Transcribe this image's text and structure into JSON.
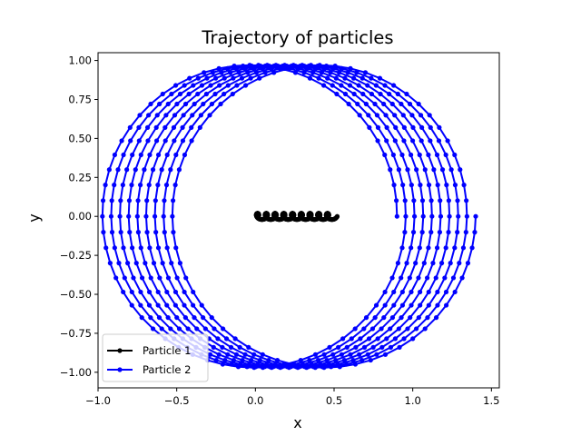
{
  "chart_data": {
    "type": "line",
    "title": "Trajectory of particles",
    "xlabel": "x",
    "ylabel": "y",
    "xlim": [
      -1.0,
      1.55
    ],
    "ylim": [
      -1.1,
      1.05
    ],
    "xticks": [
      -1.0,
      -0.5,
      0.0,
      0.5,
      1.0,
      1.5
    ],
    "xtick_labels": [
      "−1.0",
      "−0.5",
      "0.0",
      "0.5",
      "1.0",
      "1.5"
    ],
    "yticks": [
      -1.0,
      -0.75,
      -0.5,
      -0.25,
      0.0,
      0.25,
      0.5,
      0.75,
      1.0
    ],
    "ytick_labels": [
      "−1.00",
      "−0.75",
      "−0.50",
      "−0.25",
      "0.00",
      "0.25",
      "0.50",
      "0.75",
      "1.00"
    ],
    "grid": false,
    "legend_position": "lower-left",
    "series": [
      {
        "name": "Particle 1",
        "color": "#000000",
        "marker": "dot",
        "x_center_start": 0.0,
        "x_center_end": 0.5,
        "radius": 0.02,
        "loops": 9
      },
      {
        "name": "Particle 2",
        "color": "#0000ff",
        "marker": "dot",
        "x_center_start": -0.05,
        "x_center_end": 0.45,
        "rx": 0.95,
        "ry": 0.97,
        "loops": 9
      }
    ]
  }
}
